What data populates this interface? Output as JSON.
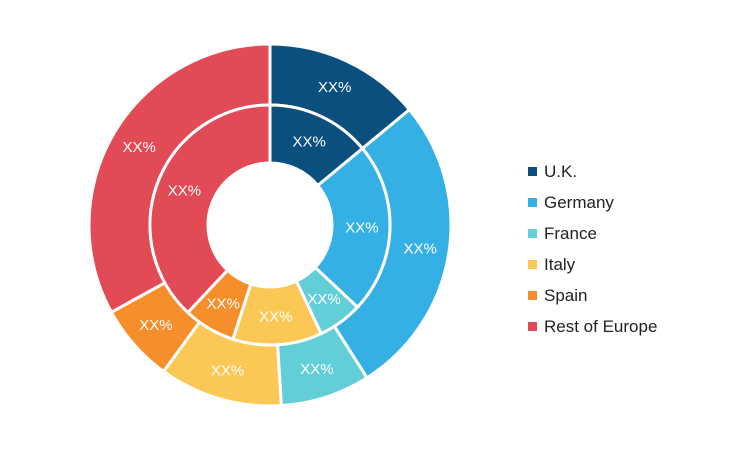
{
  "chart_data": {
    "type": "donut",
    "title": "",
    "categories": [
      "U.K.",
      "Germany",
      "France",
      "Italy",
      "Spain",
      "Rest of Europe"
    ],
    "colors": [
      "#0b4f7e",
      "#35b0e4",
      "#62cfd8",
      "#fcc855",
      "#f68e2c",
      "#e24a56"
    ],
    "series": [
      {
        "values": [
          14,
          27,
          8,
          11,
          7,
          33
        ],
        "labels": [
          "XX%",
          "XX%",
          "XX%",
          "XX%",
          "XX%",
          "XX%"
        ]
      },
      {
        "values": [
          14,
          23,
          6,
          12,
          7,
          38
        ],
        "labels": [
          "XX%",
          "XX%",
          "XX%",
          "XX%",
          "XX%",
          "XX%"
        ]
      }
    ],
    "legend_position": "right"
  }
}
